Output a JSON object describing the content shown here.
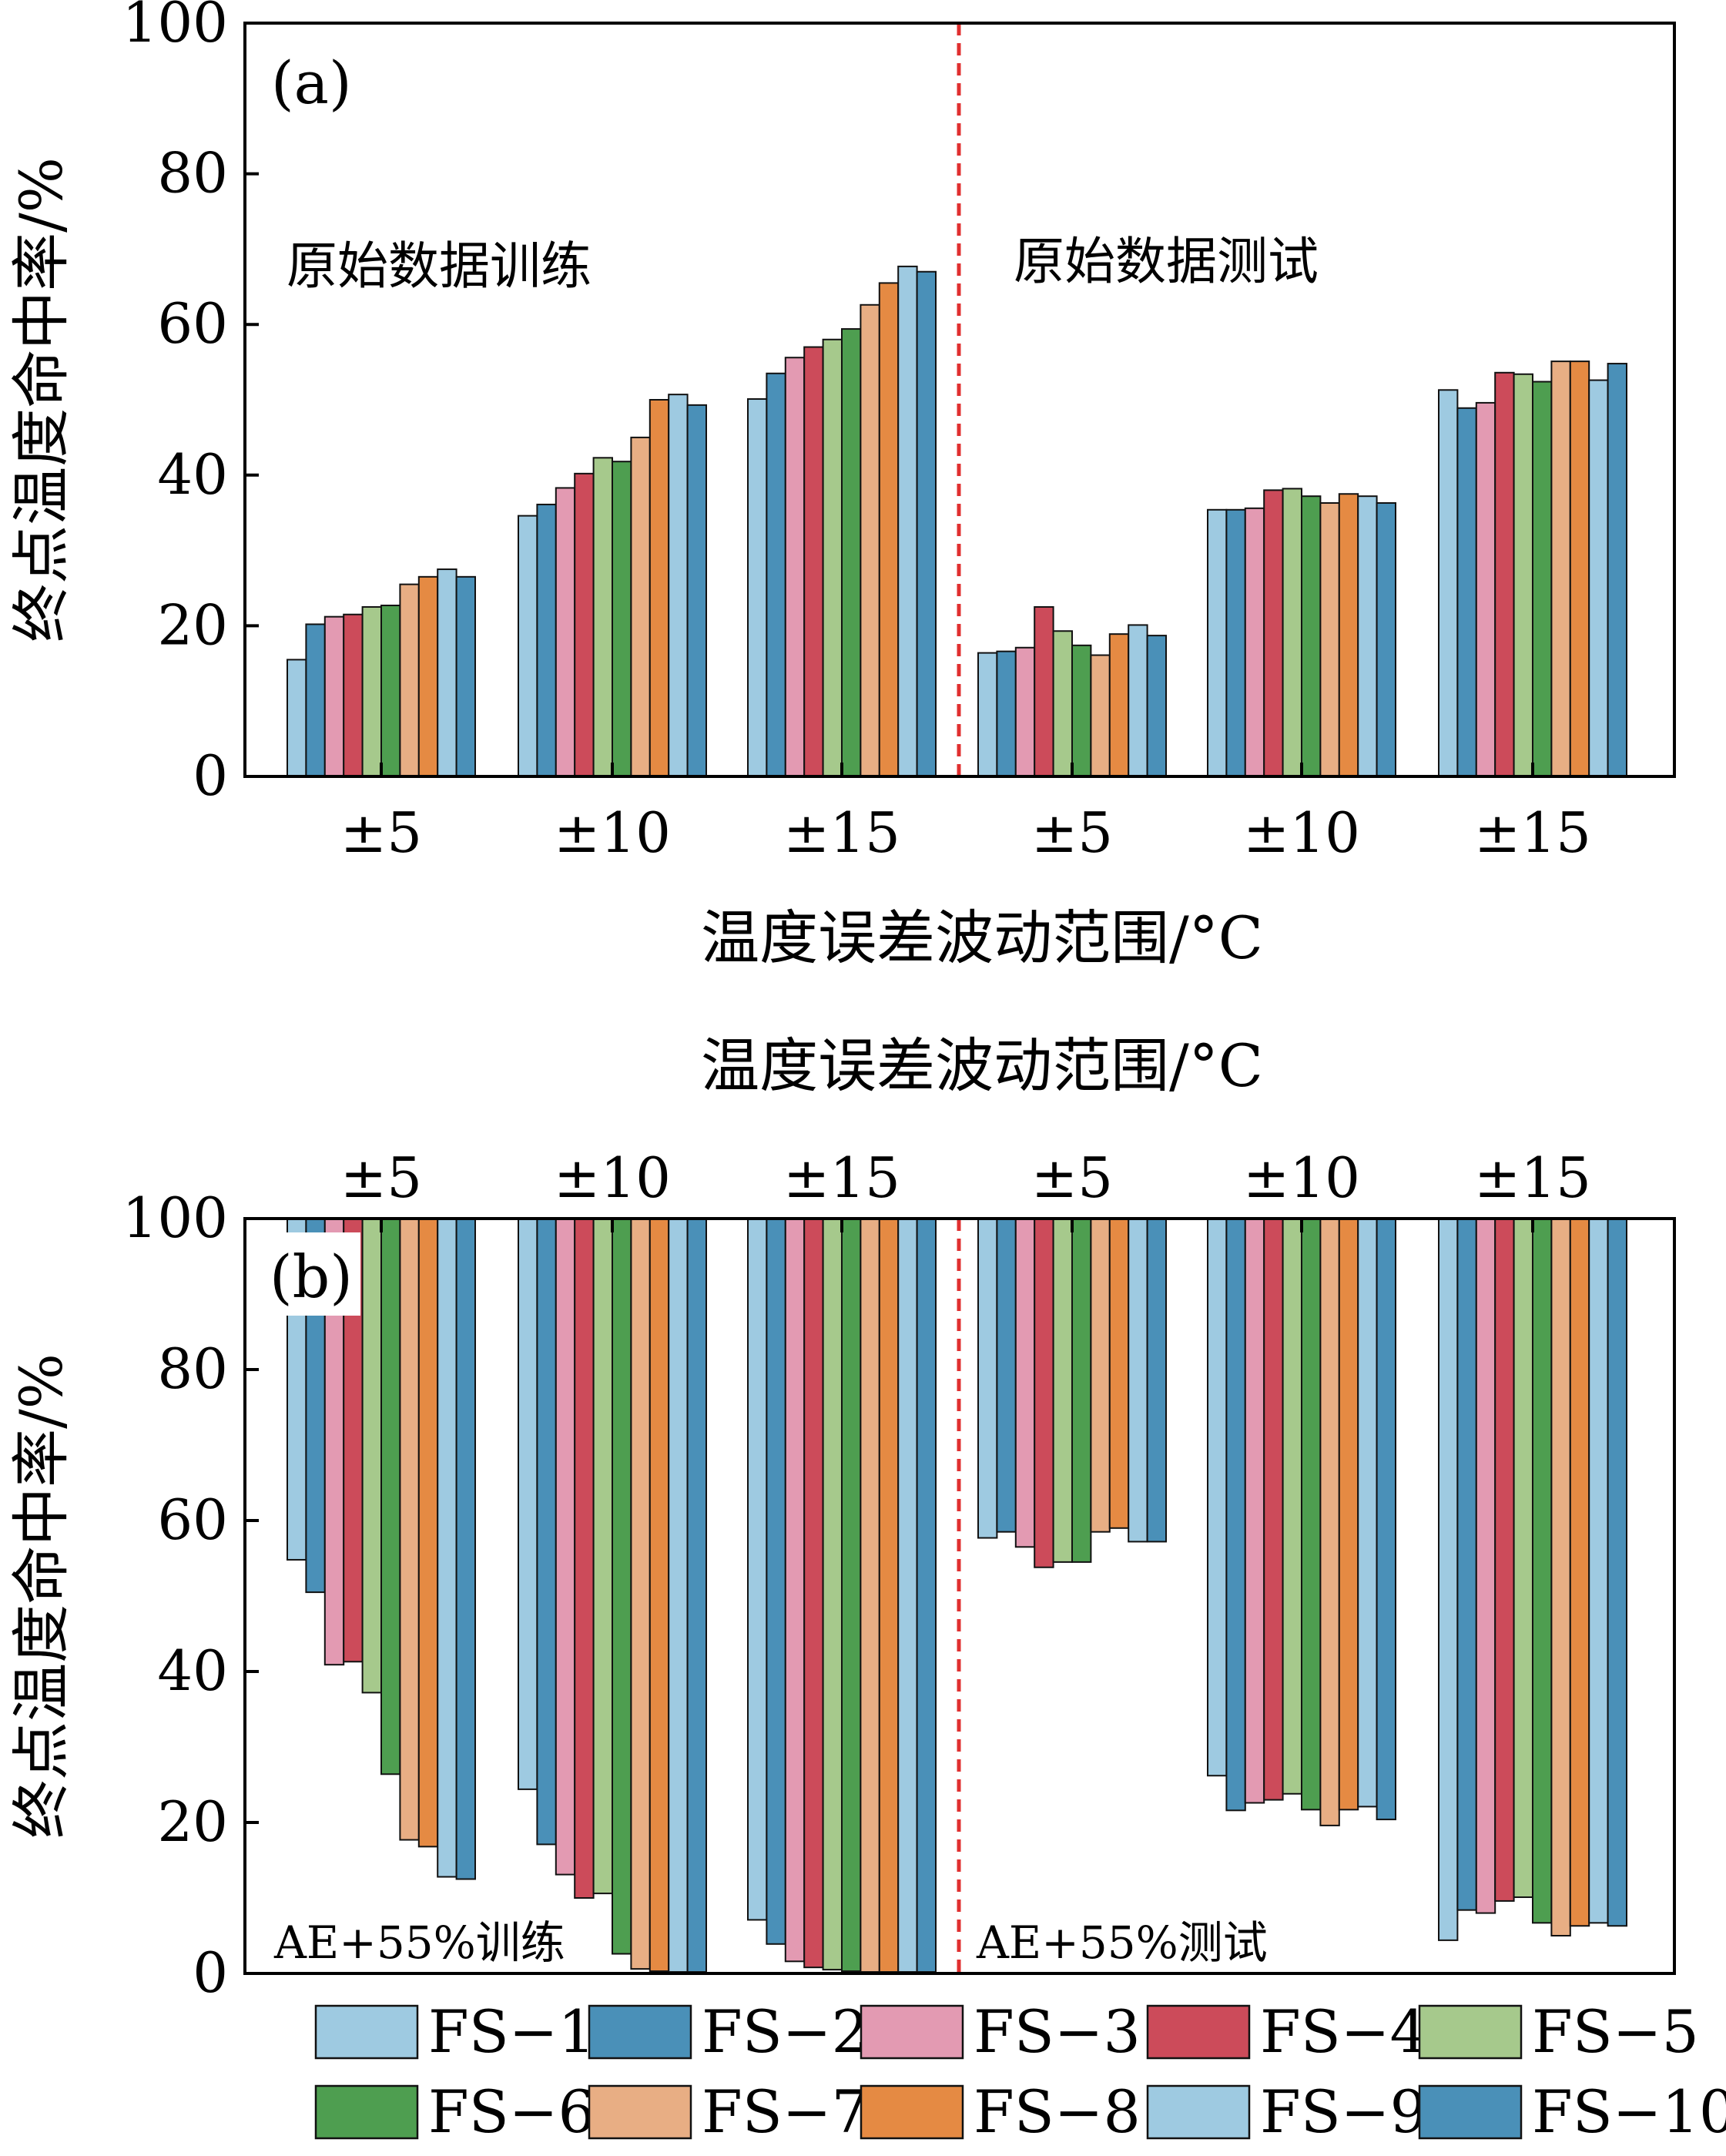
{
  "chart_data": {
    "type": "bar",
    "series_names": [
      "FS-1",
      "FS-2",
      "FS-3",
      "FS-4",
      "FS-5",
      "FS-6",
      "FS-7",
      "FS-8",
      "FS-9",
      "FS-10"
    ],
    "series_colors": [
      "#9ecae1",
      "#4a90b8",
      "#e39ab2",
      "#cc4b5a",
      "#a6c98c",
      "#4e9e50",
      "#e8ae84",
      "#e58a43",
      "#9ecae1",
      "#4a90b8"
    ],
    "legend_labels": [
      "FS−1",
      "FS−2",
      "FS−3",
      "FS−4",
      "FS−5",
      "FS−6",
      "FS−7",
      "FS−8",
      "FS−9",
      "FS−10"
    ],
    "separator_color": "#e03030",
    "panels": [
      {
        "panel_label": "(a)",
        "direction": "up",
        "ylabel": "终点温度命中率/%",
        "xlabel": "温度误差波动范围/°C",
        "ylim": [
          0,
          100
        ],
        "yticks": [
          "0",
          "20",
          "40",
          "60",
          "80",
          "100"
        ],
        "categories": [
          "±5",
          "±10",
          "±15",
          "±5",
          "±10",
          "±15"
        ],
        "annotations": [
          "原始数据训练",
          "原始数据测试"
        ],
        "values": [
          [
            15.5,
            20.2,
            21.2,
            21.5,
            22.5,
            22.7,
            25.5,
            26.5,
            27.5,
            26.5
          ],
          [
            34.6,
            36.1,
            38.3,
            40.2,
            42.3,
            41.8,
            45.0,
            50.0,
            50.7,
            49.3
          ],
          [
            50.1,
            53.5,
            55.6,
            57.0,
            58.0,
            59.4,
            62.6,
            65.5,
            67.7,
            67.0
          ],
          [
            16.4,
            16.6,
            17.1,
            22.5,
            19.3,
            17.4,
            16.1,
            18.9,
            20.1,
            18.7
          ],
          [
            35.4,
            35.4,
            35.6,
            38.0,
            38.2,
            37.2,
            36.3,
            37.5,
            37.2,
            36.3
          ],
          [
            51.3,
            48.9,
            49.6,
            53.6,
            53.4,
            52.4,
            55.1,
            55.1,
            52.6,
            54.8
          ]
        ]
      },
      {
        "panel_label": "(b)",
        "direction": "down",
        "ylabel": "终点温度命中率/%",
        "xlabel": "温度误差波动范围/°C",
        "ylim": [
          0,
          100
        ],
        "yticks": [
          "0",
          "20",
          "40",
          "60",
          "80",
          "100"
        ],
        "categories": [
          "±5",
          "±10",
          "±15",
          "±5",
          "±10",
          "±15"
        ],
        "annotations": [
          "AE+55%训练",
          "AE+55%测试"
        ],
        "values": [
          [
            54.8,
            50.5,
            40.9,
            41.3,
            37.2,
            26.4,
            17.7,
            16.8,
            12.8,
            12.5
          ],
          [
            24.4,
            17.1,
            13.1,
            10.0,
            10.6,
            2.6,
            0.6,
            0.3,
            0.2,
            0.2
          ],
          [
            7.1,
            3.9,
            1.6,
            0.8,
            0.5,
            0.3,
            0.2,
            0.2,
            0.2,
            0.2
          ],
          [
            57.7,
            58.5,
            56.5,
            53.8,
            54.5,
            54.5,
            58.5,
            59.0,
            57.2,
            57.2
          ],
          [
            26.2,
            21.6,
            22.6,
            23.0,
            23.8,
            21.7,
            19.6,
            21.7,
            22.1,
            20.4
          ],
          [
            4.4,
            8.4,
            8.0,
            9.6,
            10.1,
            6.7,
            5.0,
            6.3,
            6.7,
            6.3
          ]
        ]
      }
    ]
  }
}
